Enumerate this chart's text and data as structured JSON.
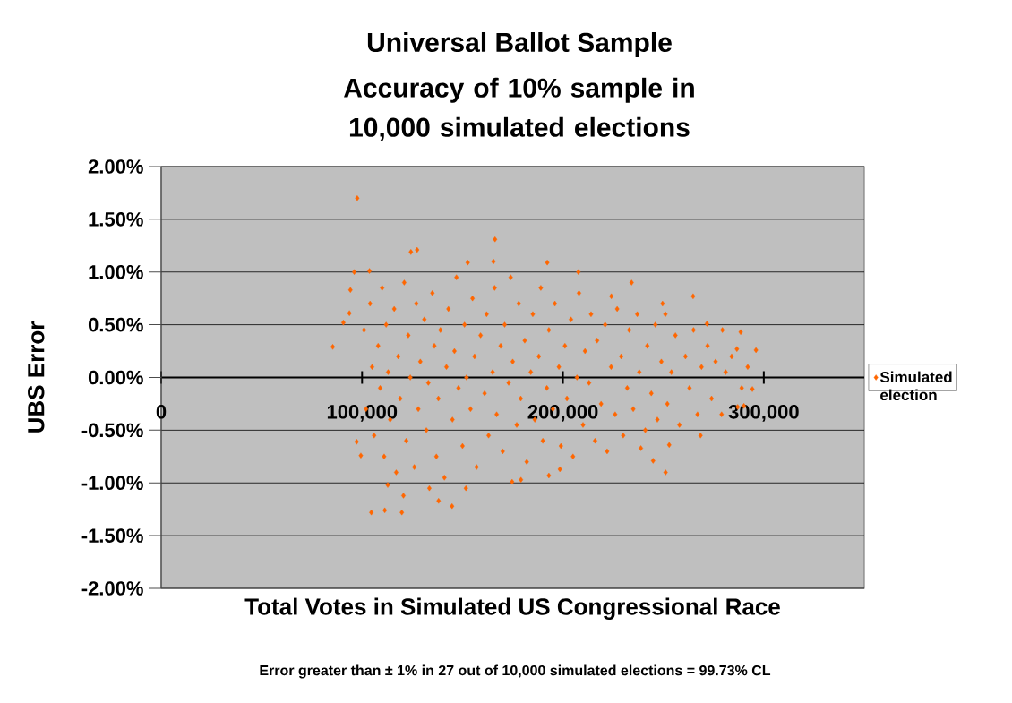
{
  "chart_data": {
    "type": "scatter",
    "title": "Universal Ballot Sample",
    "subtitle": "Accuracy of 10% sample in 10,000 simulated elections",
    "xlabel": "Total Votes in Simulated US Congressional Race",
    "ylabel": "UBS Error",
    "annotations": [
      "Error greater than ± 1% in 27 out of 10,000 simulated elections = 99.73% CL"
    ],
    "xlim": [
      0,
      350000
    ],
    "xticks": [
      0,
      {
        "value": 100000,
        "label": "100,000"
      },
      {
        "value": 200000,
        "label": "200,000"
      },
      {
        "value": 300000,
        "label": "300,000"
      }
    ],
    "ylim": [
      -2,
      2
    ],
    "yticks": [
      {
        "value": -2,
        "label": "-2.00%"
      },
      {
        "value": -1.5,
        "label": "-1.50%"
      },
      {
        "value": -1,
        "label": "-1.00%"
      },
      {
        "value": -0.5,
        "label": "-0.50%"
      },
      {
        "value": 0,
        "label": "0.00%"
      },
      {
        "value": 0.5,
        "label": "0.50%"
      },
      {
        "value": 1,
        "label": "1.00%"
      },
      {
        "value": 1.5,
        "label": "1.50%"
      },
      {
        "value": 2,
        "label": "2.00%"
      }
    ],
    "grid": "y",
    "legend": "right",
    "marker": "diamond",
    "series": [
      {
        "name": "Simulated election",
        "color": "#ff6600",
        "x": [
          97600,
          124300,
          127400,
          166200,
          165400,
          152600,
          96100,
          103700,
          85400,
          90700,
          93700,
          94200,
          104600,
          111300,
          119800,
          144800,
          138100,
          120600,
          112800,
          151700,
          133500,
          99400,
          97300,
          192200,
          207700,
          234200,
          264800,
          288500,
          296100,
          294300,
          251100,
          244900,
          179100,
          174700,
          193000,
          198500,
          290100,
          287000,
          268500,
          252900,
          238800,
          286600,
          279400,
          271700,
          249600,
          224100,
          101000,
          102000,
          104000,
          105000,
          106000,
          108000,
          109000,
          110000,
          111000,
          112000,
          113000,
          114000,
          116000,
          117000,
          118000,
          119000,
          121000,
          122000,
          123000,
          124000,
          126000,
          127000,
          128000,
          129000,
          131000,
          132000,
          133000,
          135000,
          136000,
          137000,
          138000,
          139000,
          141000,
          142000,
          143000,
          145000,
          146000,
          147000,
          148000,
          150000,
          151000,
          152000,
          154000,
          155000,
          156000,
          157000,
          159000,
          161000,
          162000,
          163000,
          165000,
          166000,
          167000,
          169000,
          170000,
          171000,
          173000,
          174000,
          175000,
          177000,
          178000,
          179000,
          181000,
          182000,
          184000,
          185000,
          186000,
          188000,
          189000,
          190000,
          192000,
          193000,
          195000,
          196000,
          198000,
          199000,
          201000,
          202000,
          204000,
          205000,
          207000,
          208000,
          210000,
          211000,
          213000,
          214000,
          216000,
          217000,
          219000,
          221000,
          222000,
          224000,
          226000,
          227000,
          229000,
          230000,
          232000,
          233000,
          235000,
          237000,
          238000,
          241000,
          242000,
          244000,
          246000,
          247000,
          249000,
          251000,
          252000,
          254000,
          256000,
          258000,
          261000,
          263000,
          265000,
          267000,
          269000,
          272000,
          274000,
          276000,
          279000,
          281000,
          284000,
          289000,
          292000
        ],
        "values": [
          1.7,
          1.19,
          1.21,
          1.31,
          1.1,
          1.09,
          1.0,
          1.01,
          0.29,
          0.52,
          0.61,
          0.83,
          -1.28,
          -1.26,
          -1.28,
          -1.22,
          -1.17,
          -1.12,
          -1.02,
          -1.05,
          -1.05,
          -0.74,
          -0.61,
          1.09,
          1.0,
          0.9,
          0.77,
          0.43,
          0.26,
          -0.11,
          -0.9,
          -0.79,
          -0.97,
          -0.99,
          -0.93,
          -0.87,
          -0.27,
          -0.28,
          -0.55,
          -0.64,
          -0.67,
          0.27,
          0.45,
          0.51,
          0.7,
          0.77,
          0.45,
          -0.3,
          0.7,
          0.1,
          -0.55,
          0.3,
          -0.1,
          0.85,
          -0.75,
          0.5,
          0.05,
          -0.4,
          0.65,
          -0.9,
          0.2,
          -0.2,
          0.9,
          -0.6,
          0.4,
          0.0,
          -0.85,
          0.7,
          -0.3,
          0.15,
          0.55,
          -0.5,
          -0.05,
          0.8,
          0.3,
          -0.75,
          -0.2,
          0.45,
          -0.95,
          0.1,
          0.65,
          -0.4,
          0.25,
          0.95,
          -0.1,
          -0.65,
          0.5,
          0.0,
          -0.3,
          0.75,
          0.2,
          -0.85,
          0.4,
          -0.15,
          0.6,
          -0.55,
          0.05,
          0.85,
          -0.35,
          0.3,
          -0.7,
          0.5,
          -0.05,
          0.95,
          0.15,
          -0.45,
          0.7,
          -0.2,
          0.35,
          -0.8,
          0.05,
          0.6,
          -0.4,
          0.2,
          0.85,
          -0.6,
          -0.1,
          0.45,
          -0.3,
          0.7,
          0.1,
          -0.65,
          0.3,
          -0.2,
          0.55,
          -0.75,
          0.0,
          0.8,
          -0.45,
          0.25,
          -0.05,
          0.6,
          -0.6,
          0.35,
          -0.25,
          0.5,
          -0.7,
          0.1,
          -0.35,
          0.65,
          0.2,
          -0.55,
          -0.1,
          0.45,
          -0.3,
          0.6,
          0.05,
          -0.5,
          0.3,
          -0.15,
          0.5,
          -0.4,
          0.15,
          0.6,
          -0.25,
          0.05,
          0.4,
          -0.45,
          0.2,
          -0.1,
          0.45,
          -0.35,
          0.1,
          0.3,
          -0.2,
          0.15,
          -0.35,
          0.05,
          0.2,
          -0.1,
          0.1
        ]
      }
    ]
  }
}
